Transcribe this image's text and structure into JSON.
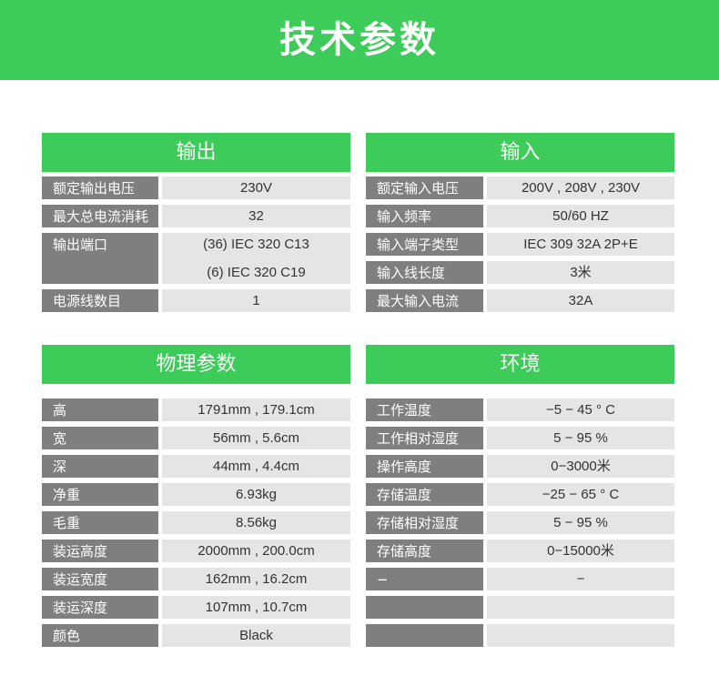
{
  "title": "技术参数",
  "output": {
    "header": "输出",
    "rows": [
      {
        "label": "额定输出电压",
        "values": [
          "230V"
        ]
      },
      {
        "label": "最大总电流消耗",
        "values": [
          "32"
        ]
      },
      {
        "label": "输出端口",
        "values": [
          "(36) IEC 320 C13",
          "(6) IEC 320 C19"
        ]
      },
      {
        "label": "电源线数目",
        "values": [
          "1"
        ]
      }
    ]
  },
  "input": {
    "header": "输入",
    "rows": [
      {
        "label": "额定输入电压",
        "values": [
          "200V , 208V , 230V"
        ]
      },
      {
        "label": "输入频率",
        "values": [
          "50/60 HZ"
        ]
      },
      {
        "label": "输入端子类型",
        "values": [
          "IEC  309 32A 2P+E"
        ]
      },
      {
        "label": "输入线长度",
        "values": [
          "3米"
        ]
      },
      {
        "label": "最大输入电流",
        "values": [
          "32A"
        ]
      }
    ]
  },
  "physical": {
    "header": "物理参数",
    "rows": [
      {
        "label": "高",
        "values": [
          "1791mm , 179.1cm"
        ]
      },
      {
        "label": "宽",
        "values": [
          "56mm , 5.6cm"
        ]
      },
      {
        "label": "深",
        "values": [
          "44mm , 4.4cm"
        ]
      },
      {
        "label": "净重",
        "values": [
          "6.93kg"
        ]
      },
      {
        "label": "毛重",
        "values": [
          "8.56kg"
        ]
      },
      {
        "label": "装运高度",
        "values": [
          "2000mm , 200.0cm"
        ]
      },
      {
        "label": "装运宽度",
        "values": [
          "162mm , 16.2cm"
        ]
      },
      {
        "label": "装运深度",
        "values": [
          "107mm , 10.7cm"
        ]
      },
      {
        "label": "颜色",
        "values": [
          "Black"
        ]
      }
    ]
  },
  "environment": {
    "header": "环境",
    "rows": [
      {
        "label": "工作温度",
        "values": [
          "−5 − 45 ° C"
        ]
      },
      {
        "label": "工作相对湿度",
        "values": [
          "5 − 95 %"
        ]
      },
      {
        "label": "操作高度",
        "values": [
          "0−3000米"
        ]
      },
      {
        "label": "存储温度",
        "values": [
          "−25 − 65 ° C"
        ]
      },
      {
        "label": "存储相对湿度",
        "values": [
          "5 − 95 %"
        ]
      },
      {
        "label": "存储高度",
        "values": [
          "0−15000米"
        ]
      },
      {
        "label": "−",
        "values": [
          "−"
        ]
      },
      {
        "label": "",
        "values": [
          ""
        ]
      },
      {
        "label": "",
        "values": [
          ""
        ]
      }
    ]
  }
}
